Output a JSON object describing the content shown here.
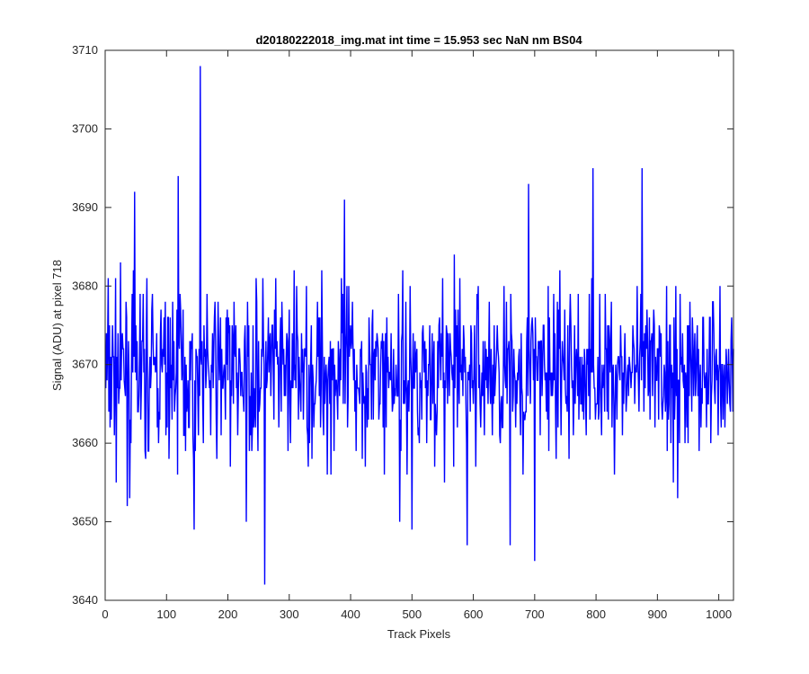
{
  "chart_data": {
    "type": "line",
    "title": "d20180222018_img.mat int time = 15.953 sec  NaN nm BS04",
    "xlabel": "Track Pixels",
    "ylabel": "Signal (ADU) at pixel 718",
    "xlim": [
      0,
      1024
    ],
    "ylim": [
      3640,
      3710
    ],
    "xticks": [
      0,
      100,
      200,
      300,
      400,
      500,
      600,
      700,
      800,
      900,
      1000
    ],
    "yticks": [
      3640,
      3650,
      3660,
      3670,
      3680,
      3690,
      3700,
      3710
    ],
    "grid": false,
    "line_color": "#0000ff",
    "series": [
      {
        "n_points": 1024,
        "x_start": 1,
        "mean": 3669,
        "notable_points": [
          {
            "x": 155,
            "y": 3708
          },
          {
            "x": 119,
            "y": 3694
          },
          {
            "x": 260,
            "y": 3642
          },
          {
            "x": 145,
            "y": 3649
          },
          {
            "x": 40,
            "y": 3653
          },
          {
            "x": 48,
            "y": 3692
          },
          {
            "x": 390,
            "y": 3691
          },
          {
            "x": 795,
            "y": 3695
          },
          {
            "x": 875,
            "y": 3695
          },
          {
            "x": 690,
            "y": 3693
          },
          {
            "x": 700,
            "y": 3645
          },
          {
            "x": 590,
            "y": 3647
          },
          {
            "x": 660,
            "y": 3647
          },
          {
            "x": 230,
            "y": 3650
          },
          {
            "x": 480,
            "y": 3650
          },
          {
            "x": 500,
            "y": 3649
          }
        ]
      }
    ]
  }
}
